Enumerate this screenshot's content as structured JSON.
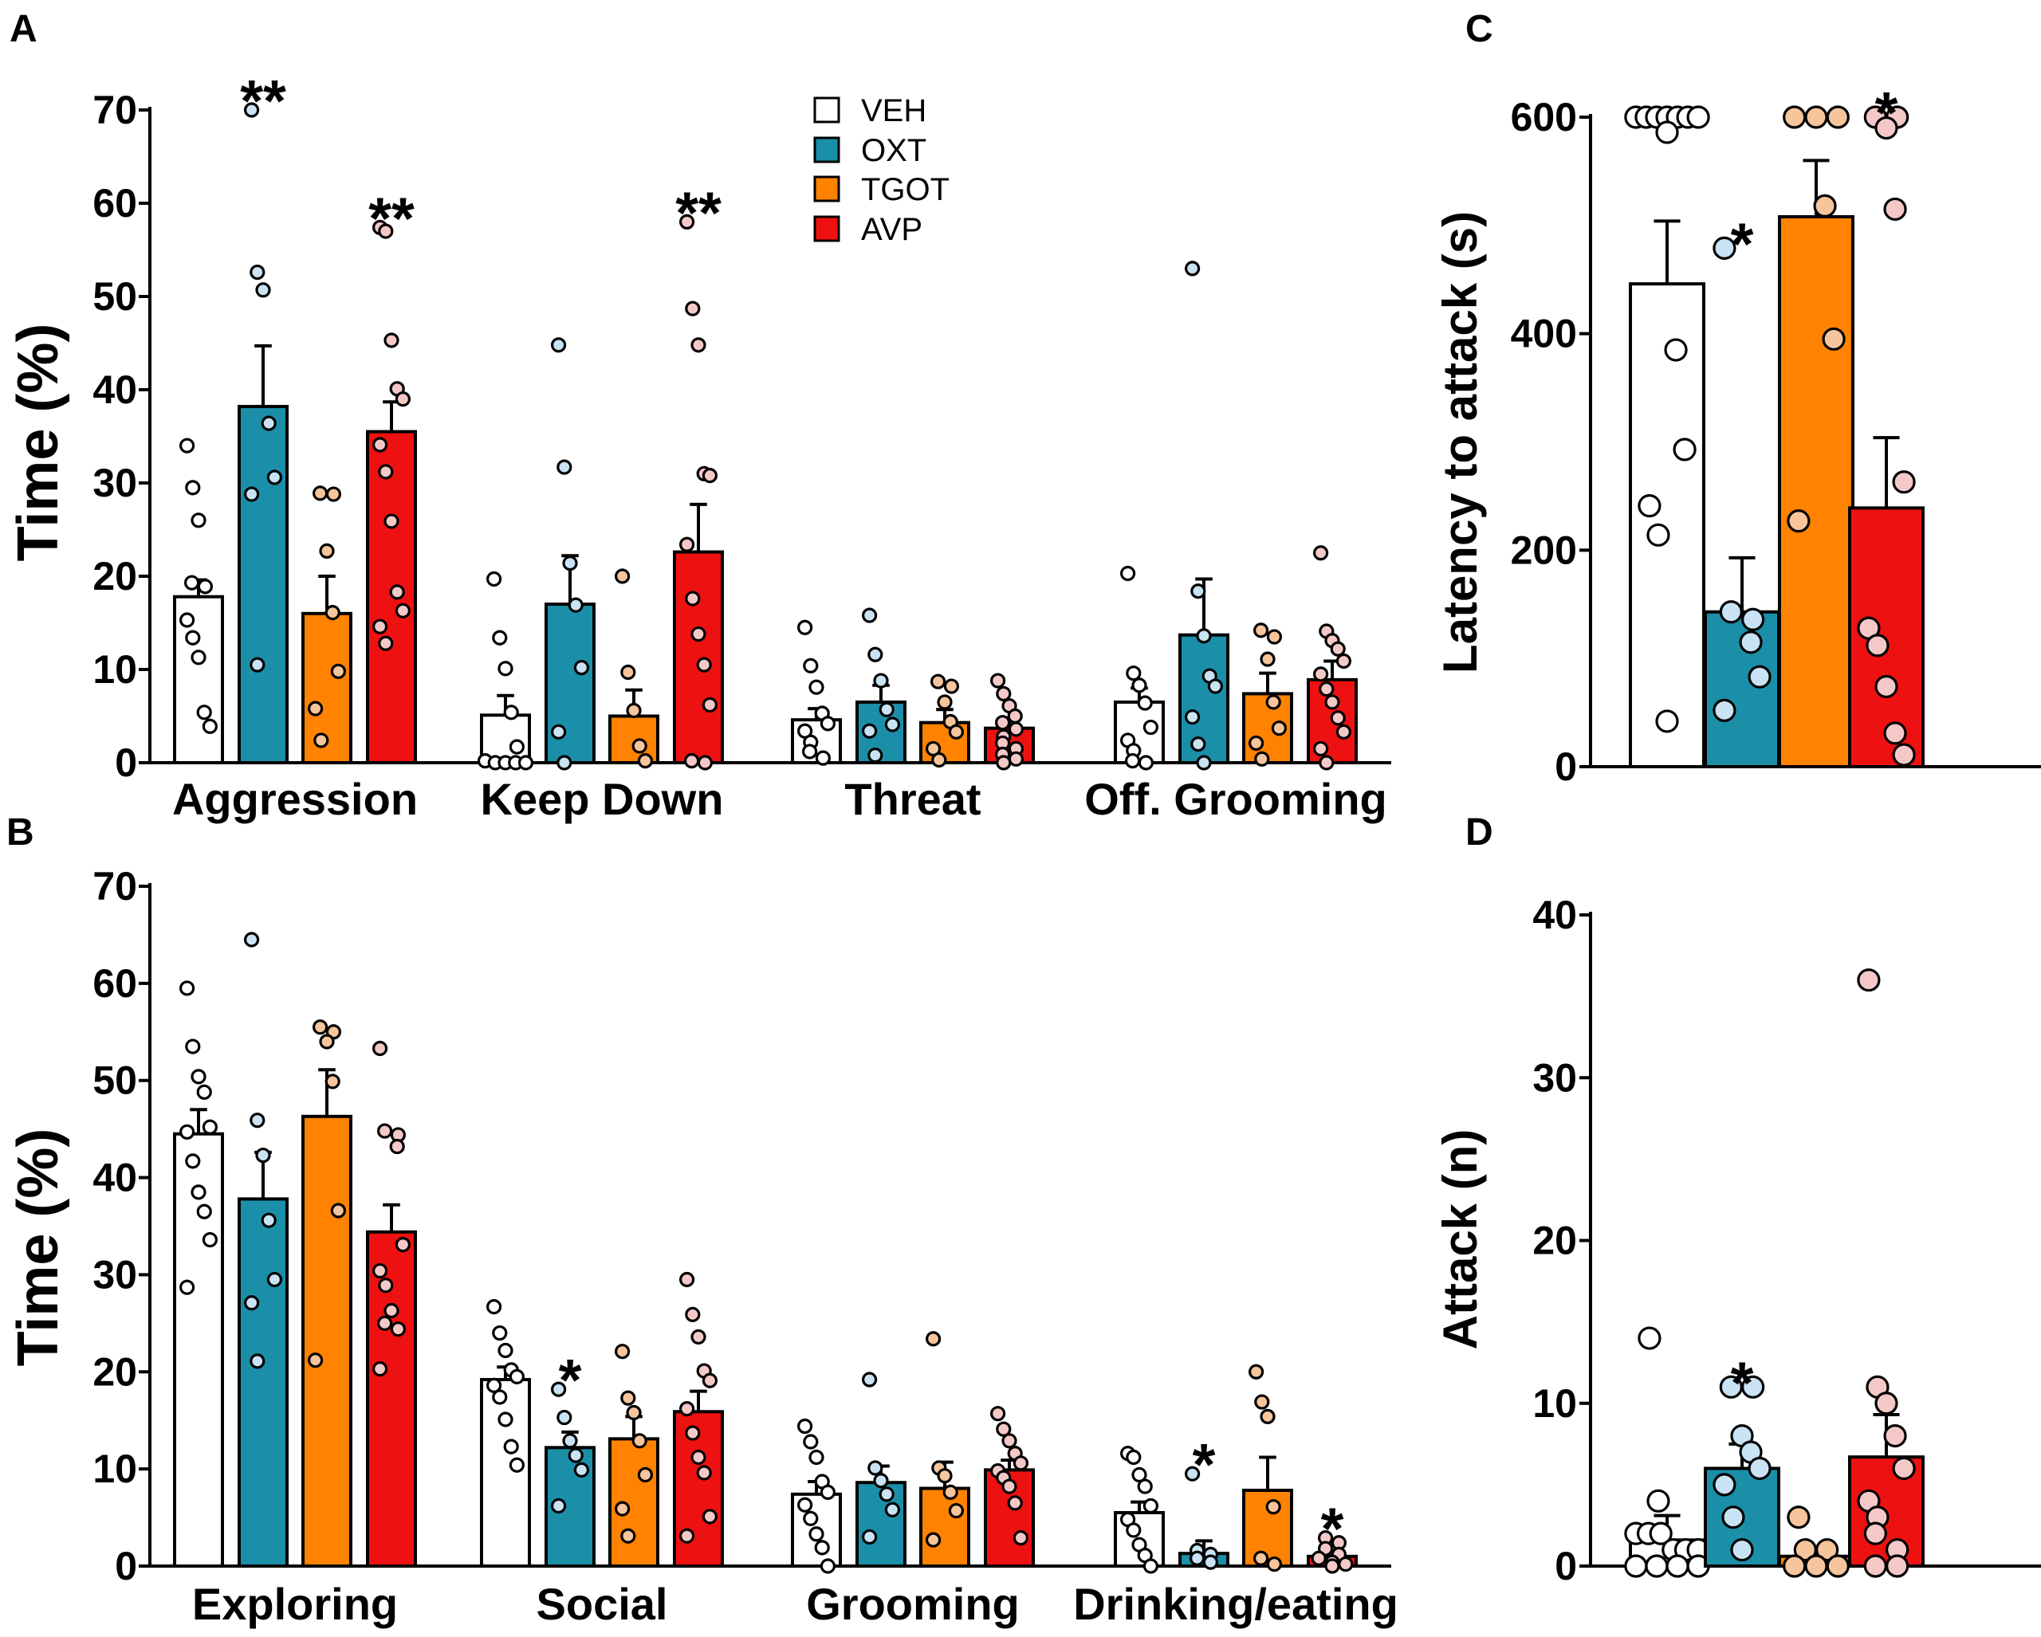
{
  "legend": {
    "items": [
      {
        "label": "VEH",
        "color": "#ffffff"
      },
      {
        "label": "OXT",
        "color": "#1b8fa8"
      },
      {
        "label": "TGOT",
        "color": "#ff8200"
      },
      {
        "label": "AVP",
        "color": "#ee1111"
      }
    ]
  },
  "colors": {
    "bars": [
      "#ffffff",
      "#1b8fa8",
      "#ff8200",
      "#ee1111"
    ],
    "dots": [
      "#ffffff",
      "#c9e3f4",
      "#f6c59c",
      "#f5c8c8"
    ]
  },
  "chart_data": [
    {
      "panel": "A",
      "type": "bar",
      "ylabel": "Time (%)",
      "ylim": [
        0,
        70
      ],
      "yticks": [
        0,
        10,
        20,
        30,
        40,
        50,
        60,
        70
      ],
      "categories": [
        "Aggression",
        "Keep Down",
        "Threat",
        "Off. Grooming"
      ],
      "series": [
        {
          "name": "VEH",
          "values": [
            17.8,
            5.1,
            4.6,
            6.5
          ],
          "sem": [
            1.8,
            2.1,
            1.2,
            1.5
          ],
          "points": [
            [
              34,
              29.5,
              26,
              19.3,
              18.9,
              15.3,
              13.4,
              11.3,
              5.4,
              3.9
            ],
            [
              19.7,
              13.4,
              10.1,
              5.4,
              1.7,
              0.2,
              0,
              0,
              0,
              0
            ],
            [
              14.5,
              10.4,
              8.1,
              5.3,
              4.2,
              3.4,
              2.2,
              1.2,
              0.5
            ],
            [
              20.3,
              9.6,
              8.3,
              6.4,
              3.8,
              2.4,
              1.3,
              0.2,
              0
            ]
          ]
        },
        {
          "name": "OXT",
          "values": [
            38.2,
            17,
            6.5,
            13.7
          ],
          "sem": [
            6.5,
            5.2,
            1.8,
            6
          ],
          "sig": [
            "**",
            "",
            "",
            ""
          ],
          "points": [
            [
              70,
              52.6,
              50.7,
              36.4,
              30.6,
              28.8,
              10.5
            ],
            [
              44.8,
              31.7,
              21.4,
              16.9,
              10.2,
              3.3,
              0
            ],
            [
              15.8,
              11.6,
              8.8,
              5.7,
              4.1,
              3.4,
              0.8
            ],
            [
              53,
              18.4,
              13.6,
              9.3,
              8.2,
              4.9,
              2,
              0
            ]
          ]
        },
        {
          "name": "TGOT",
          "values": [
            16,
            5,
            4.3,
            7.4
          ],
          "sem": [
            4,
            2.8,
            1.4,
            2.2
          ],
          "points": [
            [
              28.9,
              28.8,
              22.7,
              16.1,
              9.8,
              5.8,
              2.4
            ],
            [
              20,
              9.7,
              5.6,
              1.8,
              0.2
            ],
            [
              8.7,
              8.2,
              6.5,
              4.4,
              3.3,
              1.5,
              0.3
            ],
            [
              14.2,
              13.5,
              11.1,
              6.5,
              3.7,
              2.1,
              0.4
            ]
          ]
        },
        {
          "name": "AVP",
          "values": [
            35.5,
            22.6,
            3.7,
            8.9
          ],
          "sem": [
            3.2,
            5.1,
            1,
            2
          ],
          "sig": [
            "**",
            "**",
            "",
            ""
          ],
          "points": [
            [
              57.4,
              57,
              45.3,
              40.1,
              39,
              34.1,
              31.2,
              25.9,
              18.3,
              16.3,
              14.6,
              12.8
            ],
            [
              58,
              48.7,
              44.8,
              31,
              30.8,
              23.4,
              17.6,
              13.8,
              10.5,
              6.2,
              0.2,
              0
            ],
            [
              8.8,
              7.4,
              6.1,
              5,
              4.3,
              3.6,
              2.8,
              2.1,
              1.5,
              0.9,
              0.4,
              0
            ],
            [
              22.5,
              14.1,
              13.1,
              12.2,
              10.9,
              9.5,
              7.9,
              6.5,
              4.8,
              3.3,
              1.5,
              0
            ]
          ]
        }
      ]
    },
    {
      "panel": "B",
      "type": "bar",
      "ylabel": "Time (%)",
      "ylim": [
        0,
        70
      ],
      "yticks": [
        0,
        10,
        20,
        30,
        40,
        50,
        60,
        70
      ],
      "categories": [
        "Exploring",
        "Social",
        "Grooming",
        "Drinking/eating"
      ],
      "series": [
        {
          "name": "VEH",
          "values": [
            44.5,
            19.2,
            7.4,
            5.5
          ],
          "sem": [
            2.5,
            1.3,
            1.3,
            1.1
          ],
          "points": [
            [
              59.5,
              53.5,
              50.4,
              48.8,
              45.2,
              44.7,
              41.7,
              38.5,
              36.5,
              33.6,
              28.7
            ],
            [
              26.7,
              24,
              22.2,
              20.2,
              19.5,
              18.6,
              17.4,
              15.1,
              12.3,
              10.4
            ],
            [
              14.4,
              12.8,
              11.2,
              8.7,
              7.6,
              6.3,
              4.9,
              3.3,
              1.9,
              0
            ],
            [
              11.6,
              11.2,
              9.4,
              8.2,
              6.2,
              4.8,
              3.7,
              2.2,
              1.1,
              0
            ]
          ]
        },
        {
          "name": "OXT",
          "values": [
            37.8,
            12.2,
            8.6,
            1.3
          ],
          "sem": [
            4.8,
            1.6,
            1.7,
            1.3
          ],
          "sig": [
            "",
            "*",
            "",
            "*"
          ],
          "points": [
            [
              64.5,
              45.9,
              42.3,
              35.6,
              29.5,
              27.1,
              21.1
            ],
            [
              18.2,
              15.3,
              12.9,
              11.4,
              9.9,
              6.2
            ],
            [
              19.2,
              10.1,
              8.8,
              7.4,
              5.8,
              3
            ],
            [
              9.5,
              1.6,
              1.2,
              0.8,
              0.4
            ]
          ]
        },
        {
          "name": "TGOT",
          "values": [
            46.3,
            13.1,
            8,
            7.8
          ],
          "sem": [
            4.8,
            2.3,
            2.7,
            3.4
          ],
          "points": [
            [
              55.5,
              55,
              54,
              49.9,
              36.6,
              21.2
            ],
            [
              22.1,
              17.3,
              15.8,
              12.9,
              9.4,
              5.9,
              3.1
            ],
            [
              23.4,
              10.1,
              9.3,
              7.6,
              5.7,
              2.7
            ],
            [
              20,
              16.9,
              15.4,
              6.1,
              0.8,
              0.2
            ]
          ]
        },
        {
          "name": "AVP",
          "values": [
            34.4,
            15.9,
            9.9,
            1
          ],
          "sem": [
            2.8,
            2.1,
            1,
            0.6
          ],
          "sig": [
            "",
            "",
            "",
            "*"
          ],
          "points": [
            [
              53.3,
              44.8,
              44.4,
              43.2,
              33.1,
              30.4,
              28.9,
              26.3,
              25,
              24.4,
              20.3
            ],
            [
              29.5,
              25.9,
              23.6,
              20.1,
              19.1,
              16.2,
              13.7,
              11.2,
              9.6,
              5.1,
              3.1
            ],
            [
              15.7,
              14.1,
              12.9,
              11.6,
              10.6,
              9.8,
              9.1,
              8.2,
              6.5,
              2.9
            ],
            [
              2.9,
              2.4,
              1.8,
              1.2,
              0.8,
              0.4,
              0.2,
              0
            ]
          ]
        }
      ]
    },
    {
      "panel": "C",
      "type": "bar",
      "ylabel": "Latency to attack (s)",
      "ylim": [
        0,
        600
      ],
      "yticks": [
        0,
        200,
        400,
        600
      ],
      "categories": [
        "VEH",
        "OXT",
        "TGOT",
        "AVP"
      ],
      "series": [
        {
          "name": "Latency",
          "values": [
            446,
            143,
            508,
            239
          ],
          "sem": [
            58,
            50,
            52,
            65
          ],
          "sig": [
            "",
            "*",
            "",
            "*"
          ],
          "points": [
            [
              600,
              600,
              600,
              600,
              600,
              600,
              600,
              586,
              385,
              293,
              241,
              214,
              42
            ],
            [
              479,
              143,
              136,
              115,
              83,
              52
            ],
            [
              600,
              600,
              600,
              518,
              395,
              227
            ],
            [
              600,
              600,
              590,
              515,
              263,
              128,
              112,
              74,
              31,
              11
            ]
          ]
        }
      ]
    },
    {
      "panel": "D",
      "type": "bar",
      "ylabel": "Attack (n)",
      "ylim": [
        0,
        40
      ],
      "yticks": [
        0,
        10,
        20,
        30,
        40
      ],
      "categories": [
        "VEH",
        "OXT",
        "TGOT",
        "AVP"
      ],
      "series": [
        {
          "name": "Attacks",
          "values": [
            1.6,
            6,
            0.6,
            6.7
          ],
          "sem": [
            1.5,
            1.5,
            0.3,
            2.6
          ],
          "sig": [
            "",
            "*",
            "",
            ""
          ],
          "points": [
            [
              14,
              4,
              2,
              2,
              2,
              1,
              1,
              1,
              0,
              0,
              0,
              0
            ],
            [
              11,
              11,
              8,
              7,
              6,
              5,
              3,
              1
            ],
            [
              3,
              1,
              1,
              0,
              0,
              0
            ],
            [
              36,
              11,
              10,
              8,
              6,
              4,
              3,
              2,
              1,
              0,
              0
            ]
          ]
        }
      ]
    }
  ],
  "panel_labels": [
    "A",
    "B",
    "C",
    "D"
  ]
}
